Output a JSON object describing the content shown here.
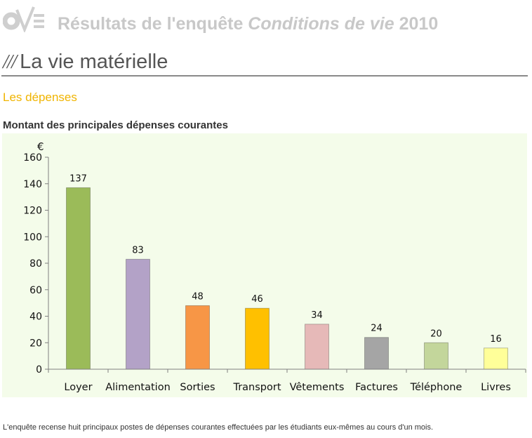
{
  "header": {
    "title_pre": "Résultats de l'enquête",
    "title_italic": "Conditions de vie",
    "title_year": "2010"
  },
  "section": {
    "slashes": "///",
    "title": "La vie matérielle"
  },
  "subsection": {
    "title": "Les dépenses"
  },
  "chart_data": {
    "type": "bar",
    "title": "Montant des principales dépenses courantes",
    "ylabel": "€",
    "xlabel": "",
    "ylim": [
      0,
      160
    ],
    "yticks": [
      0,
      20,
      40,
      60,
      80,
      100,
      120,
      140,
      160
    ],
    "categories": [
      "Loyer",
      "Alimentation",
      "Sorties",
      "Transport",
      "Vêtements",
      "Factures",
      "Téléphone",
      "Livres"
    ],
    "values": [
      137,
      83,
      48,
      46,
      34,
      24,
      20,
      16
    ],
    "data_labels": [
      "137",
      "83",
      "48",
      "46",
      "34",
      "24",
      "20",
      "16"
    ],
    "colors": [
      "#9bbb59",
      "#b3a2c7",
      "#f79646",
      "#ffc000",
      "#e6b9b8",
      "#a5a5a5",
      "#c3d69b",
      "#ffff99"
    ],
    "grid": false
  },
  "footnote": "L'enquête recense huit principaux postes de dépenses courantes effectuées par les étudiants eux-mêmes au cours d'un mois."
}
